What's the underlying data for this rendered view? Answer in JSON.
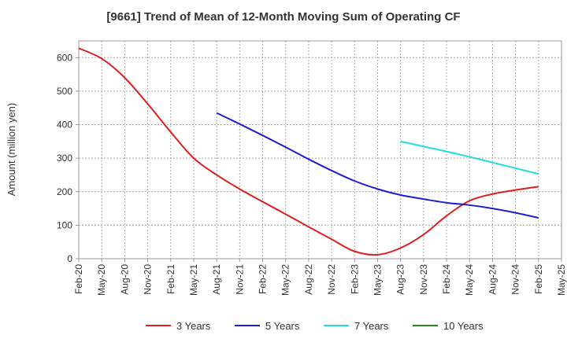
{
  "chart_data": {
    "type": "line",
    "title": "[9661]  Trend of Mean of 12-Month Moving Sum of Operating CF",
    "xlabel": "",
    "ylabel": "Amount (million yen)",
    "ylim": [
      0,
      650
    ],
    "yticks": [
      0,
      100,
      200,
      300,
      400,
      500,
      600
    ],
    "x_tick_labels": [
      "Feb-20",
      "May-20",
      "Aug-20",
      "Nov-20",
      "Feb-21",
      "May-21",
      "Aug-21",
      "Nov-21",
      "Feb-22",
      "May-22",
      "Aug-22",
      "Nov-22",
      "Feb-23",
      "May-23",
      "Aug-23",
      "Nov-23",
      "Feb-24",
      "May-24",
      "Aug-24",
      "Nov-24",
      "Feb-25",
      "May-25"
    ],
    "grid": true,
    "legend_position": "bottom",
    "series": [
      {
        "name": "3 Years",
        "color": "#dd1e1e",
        "points": [
          [
            0,
            628
          ],
          [
            1,
            597
          ],
          [
            2,
            540
          ],
          [
            3,
            462
          ],
          [
            4,
            378
          ],
          [
            5,
            300
          ],
          [
            6,
            250
          ],
          [
            7,
            208
          ],
          [
            8,
            170
          ],
          [
            9,
            133
          ],
          [
            10,
            95
          ],
          [
            11,
            58
          ],
          [
            12,
            22
          ],
          [
            13,
            12
          ],
          [
            14,
            32
          ],
          [
            15,
            72
          ],
          [
            16,
            128
          ],
          [
            17,
            173
          ],
          [
            18,
            193
          ],
          [
            19,
            205
          ],
          [
            20,
            215
          ]
        ]
      },
      {
        "name": "5 Years",
        "color": "#1e1ecc",
        "points": [
          [
            6,
            435
          ],
          [
            7,
            402
          ],
          [
            8,
            368
          ],
          [
            9,
            333
          ],
          [
            10,
            297
          ],
          [
            11,
            263
          ],
          [
            12,
            232
          ],
          [
            13,
            208
          ],
          [
            14,
            190
          ],
          [
            15,
            178
          ],
          [
            16,
            167
          ],
          [
            17,
            160
          ],
          [
            18,
            150
          ],
          [
            19,
            137
          ],
          [
            20,
            122
          ]
        ]
      },
      {
        "name": "7 Years",
        "color": "#22dddd",
        "points": [
          [
            14,
            350
          ],
          [
            15,
            335
          ],
          [
            16,
            320
          ],
          [
            17,
            304
          ],
          [
            18,
            287
          ],
          [
            19,
            270
          ],
          [
            20,
            253
          ]
        ]
      },
      {
        "name": "10 Years",
        "color": "#228822",
        "points": []
      }
    ]
  }
}
